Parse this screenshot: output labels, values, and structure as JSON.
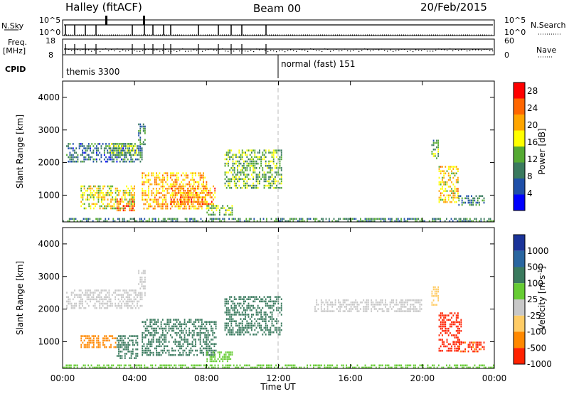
{
  "header": {
    "station": "Halley (fitACF)",
    "beam": "Beam 00",
    "date": "20/Feb/2015"
  },
  "status_panels": {
    "nsky_label": "N.Sky",
    "nsky_top": "10^5",
    "nsky_bottom": "10^0",
    "nsearch_label": "N.Search",
    "nsearch_top": "10^5",
    "nsearch_bottom": "10^0",
    "freq_label": "Freq.",
    "freq_unit": "[MHz]",
    "freq_top": "18",
    "freq_bottom": "8",
    "nave_label": "Nave",
    "nave_top": "60",
    "nave_bottom": "0",
    "cpid_label": "CPID",
    "cpid_segments": [
      {
        "name": "themis 3300",
        "start_hour": 0
      },
      {
        "name": "normal (fast) 151",
        "start_hour": 12
      }
    ]
  },
  "colors": {
    "power": [
      "#0000ff",
      "#1f4fa8",
      "#3a7a5e",
      "#55aa33",
      "#ffff00",
      "#ffa500",
      "#ff6600",
      "#ff0000"
    ],
    "velocity_bins": [
      {
        "label": "1000",
        "color": "#1a3399"
      },
      {
        "label": "500",
        "color": "#2a66a0"
      },
      {
        "label": "100",
        "color": "#3a7a5e"
      },
      {
        "label": "25",
        "color": "#66cc33"
      },
      {
        "label": "-25",
        "color": "#c8c8c8"
      },
      {
        "label": "-100",
        "color": "#ffcc66"
      },
      {
        "label": "-500",
        "color": "#ff8800"
      },
      {
        "label": "-1000",
        "color": "#ff2200"
      }
    ],
    "ground_scatter": "#aaaaaa"
  },
  "chart_data": [
    {
      "type": "heatmap",
      "title": "Power",
      "xlabel": "Time UT",
      "ylabel": "Slant Range [km]",
      "x_ticks": [
        "00:00",
        "04:00",
        "08:00",
        "12:00",
        "16:00",
        "20:00",
        "00:00"
      ],
      "xlim_hours": [
        0,
        24
      ],
      "y_ticks": [
        1000,
        2000,
        3000,
        4000
      ],
      "ylim_km": [
        180,
        4500
      ],
      "colorbar_label": "Power [dB]",
      "colorbar_ticks": [
        4,
        8,
        12,
        16,
        20,
        24,
        28
      ],
      "colorbar_range": [
        0,
        30
      ],
      "regions": [
        {
          "t": [
            0.2,
            4.4
          ],
          "r": [
            2000,
            2600
          ],
          "v": 8
        },
        {
          "t": [
            2.6,
            4.1
          ],
          "r": [
            2200,
            2600
          ],
          "v": 14
        },
        {
          "t": [
            4.2,
            4.6
          ],
          "r": [
            2400,
            3200
          ],
          "v": 9
        },
        {
          "t": [
            1.0,
            4.0
          ],
          "r": [
            600,
            1300
          ],
          "v": 17
        },
        {
          "t": [
            3.0,
            4.0
          ],
          "r": [
            500,
            900
          ],
          "v": 24
        },
        {
          "t": [
            4.4,
            8.0
          ],
          "r": [
            600,
            1700
          ],
          "v": 20
        },
        {
          "t": [
            6.0,
            8.5
          ],
          "r": [
            700,
            1300
          ],
          "v": 22
        },
        {
          "t": [
            8.0,
            9.4
          ],
          "r": [
            400,
            700
          ],
          "v": 14
        },
        {
          "t": [
            9.0,
            12.2
          ],
          "r": [
            1200,
            2400
          ],
          "v": 13
        },
        {
          "t": [
            20.5,
            20.9
          ],
          "r": [
            2100,
            2700
          ],
          "v": 12
        },
        {
          "t": [
            20.9,
            22.0
          ],
          "r": [
            800,
            1900
          ],
          "v": 18
        },
        {
          "t": [
            22.0,
            23.4
          ],
          "r": [
            700,
            1000
          ],
          "v": 9
        },
        {
          "t": [
            0.0,
            24.0
          ],
          "r": [
            180,
            300
          ],
          "v": 10
        }
      ]
    },
    {
      "type": "heatmap",
      "title": "Velocity",
      "xlabel": "Time UT",
      "ylabel": "Slant Range [km]",
      "x_ticks": [
        "00:00",
        "04:00",
        "08:00",
        "12:00",
        "16:00",
        "20:00",
        "00:00"
      ],
      "xlim_hours": [
        0,
        24
      ],
      "y_ticks": [
        1000,
        2000,
        3000,
        4000
      ],
      "ylim_km": [
        180,
        4500
      ],
      "colorbar_label": "Velocity [m s^-1]",
      "colorbar_ticks": [
        1000,
        500,
        100,
        25,
        -25,
        -100,
        -500,
        -1000
      ],
      "regions": [
        {
          "t": [
            0.2,
            4.4
          ],
          "r": [
            2000,
            2600
          ],
          "v": 0
        },
        {
          "t": [
            4.2,
            4.6
          ],
          "r": [
            2400,
            3200
          ],
          "v": 0
        },
        {
          "t": [
            1.0,
            3.0
          ],
          "r": [
            800,
            1200
          ],
          "v": -150
        },
        {
          "t": [
            3.0,
            4.2
          ],
          "r": [
            500,
            1200
          ],
          "v": 300
        },
        {
          "t": [
            4.4,
            8.5
          ],
          "r": [
            600,
            1700
          ],
          "v": 200
        },
        {
          "t": [
            8.0,
            9.4
          ],
          "r": [
            400,
            700
          ],
          "v": 60
        },
        {
          "t": [
            9.0,
            12.2
          ],
          "r": [
            1200,
            2400
          ],
          "v": 250
        },
        {
          "t": [
            14.0,
            20.0
          ],
          "r": [
            1900,
            2300
          ],
          "v": 0
        },
        {
          "t": [
            20.5,
            20.9
          ],
          "r": [
            2100,
            2700
          ],
          "v": -60
        },
        {
          "t": [
            20.9,
            22.2
          ],
          "r": [
            700,
            1900
          ],
          "v": -800
        },
        {
          "t": [
            22.0,
            23.4
          ],
          "r": [
            700,
            1000
          ],
          "v": -600
        },
        {
          "t": [
            0.0,
            24.0
          ],
          "r": [
            180,
            300
          ],
          "v": 50
        }
      ]
    }
  ]
}
